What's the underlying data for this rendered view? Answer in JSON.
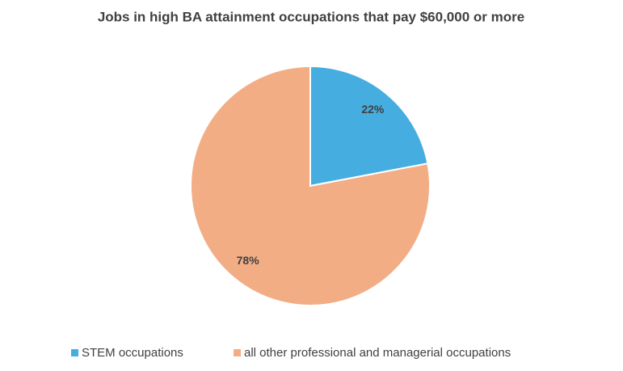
{
  "chart_data": {
    "type": "pie",
    "title": "Jobs in high BA attainment occupations that pay $60,000 or more",
    "categories": [
      "STEM occupations",
      "all other professional and managerial occupations"
    ],
    "values": [
      22,
      78
    ],
    "value_labels": [
      "22%",
      "78%"
    ],
    "colors": [
      "#46ade0",
      "#f2ad85"
    ],
    "legend": "bottom"
  }
}
